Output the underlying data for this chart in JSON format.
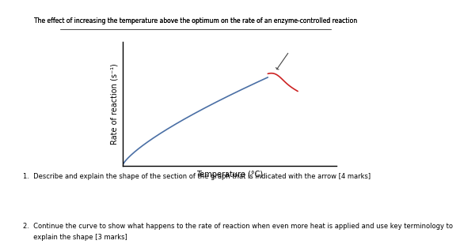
{
  "title": "The effect of increasing the temperature above the optimum on the rate of an enzyme-controlled reaction",
  "xlabel": "Temperature (°C)",
  "ylabel": "Rate of reaction (s⁻¹)",
  "title_fontsize": 5.5,
  "label_fontsize": 7.0,
  "q1_text": "1.  Describe and explain the shape of the section of the graph that is indicated with the arrow [4 marks]",
  "q2_line1": "2.  Continue the curve to show what happens to the rate of reaction when even more heat is applied and use key terminology to",
  "q2_line2": "     explain the shape [3 marks]",
  "q1_fontsize": 6.0,
  "q2_fontsize": 6.0,
  "background_color": "#ffffff",
  "line_color_blue": "#4a6fa5",
  "line_color_red": "#cc2222",
  "arrow_color": "#444444"
}
